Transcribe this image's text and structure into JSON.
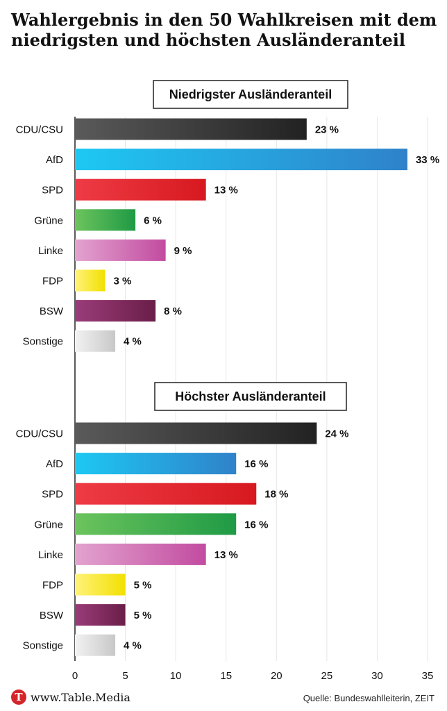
{
  "title": {
    "line1": "Wahlergebnis in den 50 Wahlkreisen mit dem",
    "line2": "niedrigsten und höchsten Ausländeranteil"
  },
  "footer": {
    "logo_letter": "T",
    "brand": "www.Table.Media",
    "source": "Quelle: Bundeswahlleiterin, ZEIT"
  },
  "colors": {
    "CDU/CSU": [
      "#5a5a5a",
      "#222222"
    ],
    "AfD": [
      "#1ec8f3",
      "#2f82c9"
    ],
    "SPD": [
      "#ee3b45",
      "#d7191f"
    ],
    "Grüne": [
      "#6cc45d",
      "#1f9a45"
    ],
    "Linke": [
      "#e3a3cf",
      "#c24ba0"
    ],
    "FDP": [
      "#fff27a",
      "#f2e000"
    ],
    "BSW": [
      "#9a3c7a",
      "#6a1e48"
    ],
    "Sonstige": [
      "#f2f2f2",
      "#c8c8c8"
    ]
  },
  "chart_data": {
    "type": "bar",
    "orientation": "horizontal",
    "xlim": [
      0,
      35
    ],
    "xticks": [
      0,
      5,
      10,
      15,
      20,
      25,
      30,
      35
    ],
    "grid": true,
    "value_suffix": " %",
    "categories": [
      "CDU/CSU",
      "AfD",
      "SPD",
      "Grüne",
      "Linke",
      "FDP",
      "BSW",
      "Sonstige"
    ],
    "panels": [
      {
        "title": "Niedrigster Ausländeranteil",
        "values": [
          23,
          33,
          13,
          6,
          9,
          3,
          8,
          4
        ]
      },
      {
        "title": "Höchster Ausländeranteil",
        "values": [
          24,
          16,
          18,
          16,
          13,
          5,
          5,
          4
        ]
      }
    ]
  }
}
